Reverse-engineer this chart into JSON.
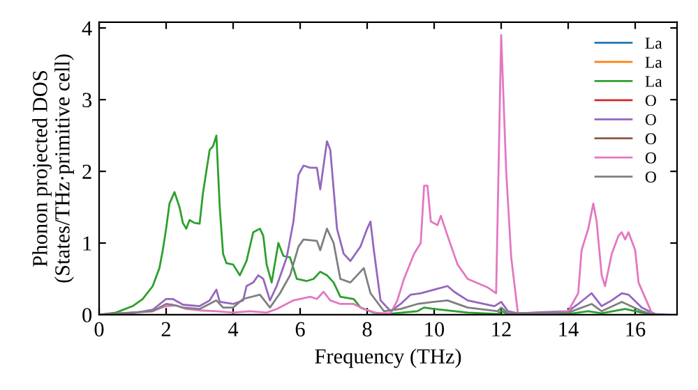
{
  "chart_data": {
    "type": "line",
    "xlabel": "Frequency (THz)",
    "ylabel": "Phonon projected DOS\n(States/THz·primitive cell)",
    "xlim": [
      0,
      17.25
    ],
    "ylim": [
      0,
      4.08
    ],
    "xticks": [
      0,
      2,
      4,
      6,
      8,
      10,
      12,
      14,
      16
    ],
    "yticks": [
      0,
      1,
      2,
      3,
      4
    ],
    "grid": false,
    "legend": "top right",
    "marker": "none",
    "line_style": "solid",
    "series": [
      {
        "name": "La",
        "color": "#1f77b4"
      },
      {
        "name": "La",
        "color": "#ff7f0e"
      },
      {
        "name": "La",
        "color": "#2ca02c",
        "x": [
          0,
          0.5,
          1,
          1.3,
          1.6,
          1.8,
          1.9,
          2.0,
          2.1,
          2.25,
          2.4,
          2.5,
          2.6,
          2.7,
          2.85,
          3.0,
          3.1,
          3.3,
          3.4,
          3.5,
          3.6,
          3.7,
          3.8,
          4.0,
          4.2,
          4.4,
          4.6,
          4.8,
          4.9,
          5.0,
          5.15,
          5.35,
          5.5,
          5.7,
          5.9,
          6.2,
          6.4,
          6.6,
          6.8,
          7.0,
          7.2,
          7.6,
          7.8,
          8.2,
          8.6,
          9.5,
          9.7,
          10.0,
          11.0,
          11.9,
          12.0,
          12.2,
          12.6,
          14.0,
          14.6,
          15.0,
          15.7,
          16.2,
          16.6
        ],
        "values": [
          0,
          0.03,
          0.12,
          0.22,
          0.4,
          0.65,
          0.9,
          1.2,
          1.55,
          1.71,
          1.5,
          1.28,
          1.2,
          1.32,
          1.28,
          1.27,
          1.7,
          2.3,
          2.35,
          2.5,
          1.5,
          0.85,
          0.72,
          0.7,
          0.55,
          0.75,
          1.15,
          1.2,
          1.1,
          0.7,
          0.45,
          1.0,
          0.82,
          0.8,
          0.5,
          0.47,
          0.5,
          0.6,
          0.55,
          0.45,
          0.25,
          0.22,
          0.1,
          0.03,
          0.01,
          0.05,
          0.1,
          0.08,
          0.03,
          0.01,
          0.05,
          0.01,
          0.0,
          0.01,
          0.05,
          0.02,
          0.08,
          0.03,
          0.0
        ]
      },
      {
        "name": "O",
        "color": "#d62728"
      },
      {
        "name": "O",
        "color": "#9467bd",
        "x": [
          0,
          1.0,
          1.6,
          2.0,
          2.2,
          2.5,
          3.0,
          3.3,
          3.5,
          3.6,
          4.0,
          4.3,
          4.4,
          4.6,
          4.75,
          4.9,
          5.1,
          5.3,
          5.6,
          5.8,
          5.95,
          6.1,
          6.3,
          6.5,
          6.6,
          6.8,
          6.9,
          7.1,
          7.3,
          7.5,
          7.8,
          8.0,
          8.1,
          8.2,
          8.4,
          8.7,
          9.0,
          9.3,
          9.6,
          10.0,
          10.4,
          10.6,
          11.0,
          11.8,
          12.0,
          12.2,
          12.5,
          14.0,
          14.3,
          14.7,
          15.0,
          15.3,
          15.6,
          15.8,
          16.2,
          16.6,
          17.0
        ],
        "values": [
          0,
          0.02,
          0.07,
          0.22,
          0.22,
          0.14,
          0.12,
          0.2,
          0.35,
          0.18,
          0.15,
          0.2,
          0.4,
          0.45,
          0.55,
          0.5,
          0.2,
          0.4,
          0.8,
          1.3,
          1.95,
          2.08,
          2.05,
          2.05,
          1.75,
          2.42,
          2.3,
          1.2,
          0.85,
          0.75,
          0.95,
          1.2,
          1.3,
          0.9,
          0.2,
          0.05,
          0.15,
          0.28,
          0.3,
          0.35,
          0.4,
          0.32,
          0.2,
          0.12,
          0.18,
          0.05,
          0.02,
          0.05,
          0.15,
          0.3,
          0.12,
          0.2,
          0.3,
          0.28,
          0.1,
          0.01,
          0
        ]
      },
      {
        "name": "O",
        "color": "#8c564b"
      },
      {
        "name": "O",
        "color": "#e377c2",
        "x": [
          0,
          1.6,
          2.0,
          2.3,
          2.6,
          3.0,
          3.5,
          4.0,
          4.5,
          5.0,
          5.3,
          5.8,
          6.3,
          6.5,
          6.7,
          6.9,
          7.2,
          7.6,
          7.9,
          8.3,
          8.7,
          8.9,
          9.1,
          9.4,
          9.6,
          9.7,
          9.8,
          9.9,
          10.1,
          10.2,
          10.4,
          10.7,
          11.0,
          11.6,
          11.85,
          12.0,
          12.15,
          12.3,
          12.5,
          13.5,
          14.0,
          14.3,
          14.4,
          14.6,
          14.75,
          14.85,
          15.0,
          15.1,
          15.3,
          15.5,
          15.6,
          15.7,
          15.8,
          16.0,
          16.1,
          16.5
        ],
        "values": [
          0,
          0.05,
          0.12,
          0.13,
          0.08,
          0.06,
          0.05,
          0.03,
          0.05,
          0.03,
          0.08,
          0.2,
          0.25,
          0.22,
          0.32,
          0.2,
          0.15,
          0.15,
          0.08,
          0.02,
          0.02,
          0.2,
          0.5,
          0.85,
          1.0,
          1.8,
          1.8,
          1.3,
          1.25,
          1.38,
          1.1,
          0.7,
          0.5,
          0.38,
          0.3,
          3.9,
          2.0,
          0.8,
          0.02,
          0.02,
          0.05,
          0.3,
          0.9,
          1.2,
          1.55,
          1.3,
          0.55,
          0.4,
          0.85,
          1.1,
          1.15,
          1.05,
          1.15,
          0.9,
          0.45,
          0.02
        ]
      },
      {
        "name": "O",
        "color": "#7f7f7f",
        "x": [
          0,
          1.6,
          2.0,
          2.2,
          2.5,
          3.0,
          3.5,
          3.7,
          4.0,
          4.3,
          4.8,
          5.1,
          5.4,
          5.7,
          5.95,
          6.1,
          6.5,
          6.6,
          6.8,
          7.0,
          7.2,
          7.5,
          7.8,
          7.9,
          8.1,
          8.5,
          9.0,
          9.5,
          10.0,
          10.4,
          11.0,
          11.9,
          12.0,
          12.2,
          14.0,
          14.7,
          15.0,
          15.6,
          16.2,
          16.6
        ],
        "values": [
          0,
          0.05,
          0.15,
          0.14,
          0.1,
          0.08,
          0.2,
          0.1,
          0.1,
          0.22,
          0.28,
          0.1,
          0.3,
          0.55,
          0.95,
          1.05,
          1.03,
          0.9,
          1.2,
          1.0,
          0.5,
          0.45,
          0.6,
          0.65,
          0.3,
          0.05,
          0.08,
          0.15,
          0.18,
          0.2,
          0.1,
          0.05,
          0.1,
          0.02,
          0.03,
          0.15,
          0.05,
          0.18,
          0.05,
          0
        ]
      }
    ]
  }
}
